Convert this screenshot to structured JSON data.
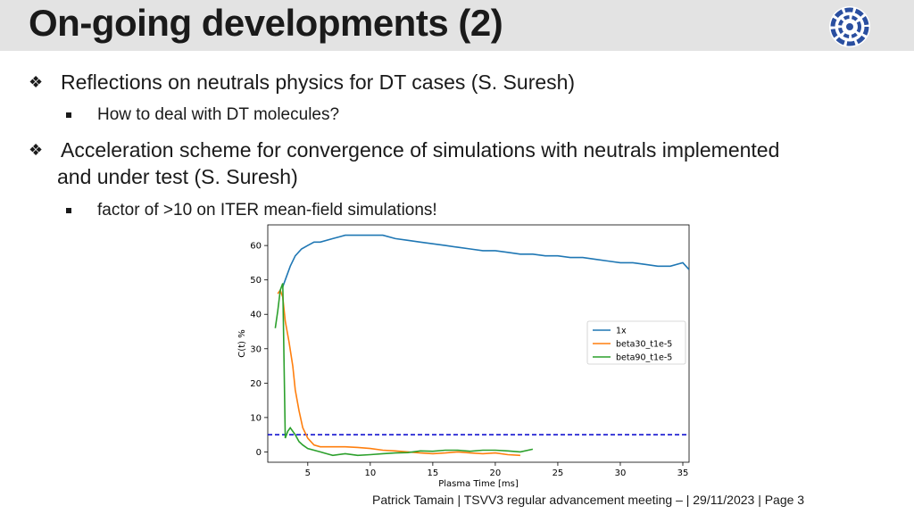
{
  "slide": {
    "title": "On-going developments (2)",
    "logo_icon": "eurofusion-ring-logo"
  },
  "bullets": [
    {
      "text": "Reflections on neutrals physics for DT cases (S. Suresh)",
      "sub": [
        "How to deal with DT molecules?"
      ]
    },
    {
      "text_line1": "Acceleration scheme for convergence of simulations with neutrals implemented",
      "text_line2": "and under test (S. Suresh)",
      "sub": [
        "factor of >10 on ITER mean-field simulations!"
      ]
    }
  ],
  "footer": {
    "text": "Patrick Tamain | TSVV3 regular advancement meeting –  | 29/11/2023 | Page 3"
  },
  "chart_data": {
    "type": "line",
    "xlabel": "Plasma Time [ms]",
    "ylabel": "C(t) %",
    "xlim": [
      1.8,
      35.5
    ],
    "ylim": [
      -3,
      66
    ],
    "xticks": [
      5,
      10,
      15,
      20,
      25,
      30,
      35
    ],
    "yticks": [
      0,
      10,
      20,
      30,
      40,
      50,
      60
    ],
    "grid": false,
    "legend_position": "right",
    "threshold_line": {
      "y": 5,
      "color": "#0000cc",
      "style": "dashed"
    },
    "series": [
      {
        "name": "1x",
        "color": "#1f77b4",
        "x": [
          3.0,
          3.3,
          3.6,
          4.0,
          4.5,
          5.0,
          5.5,
          6.0,
          7.0,
          8.0,
          9.0,
          10.0,
          11.0,
          12.0,
          13.0,
          14.0,
          15.0,
          16.0,
          17.0,
          18.0,
          19.0,
          20.0,
          21.0,
          22.0,
          23.0,
          24.0,
          25.0,
          26.0,
          27.0,
          28.0,
          29.0,
          30.0,
          31.0,
          32.0,
          33.0,
          34.0,
          35.0,
          35.5
        ],
        "y": [
          48,
          51,
          54,
          57,
          59,
          60,
          61,
          61,
          62,
          63,
          63,
          63,
          63,
          62,
          61.5,
          61,
          60.5,
          60,
          59.5,
          59,
          58.5,
          58.5,
          58,
          57.5,
          57.5,
          57,
          57,
          56.5,
          56.5,
          56,
          55.5,
          55,
          55,
          54.5,
          54,
          54,
          55,
          53
        ]
      },
      {
        "name": "beta30_t1e-5",
        "color": "#ff7f0e",
        "x": [
          2.6,
          2.8,
          3.0,
          3.2,
          3.5,
          3.8,
          4.0,
          4.3,
          4.6,
          5.0,
          5.5,
          6.0,
          7.0,
          8.0,
          9.0,
          10.0,
          11.0,
          12.0,
          13.0,
          14.0,
          15.0,
          16.0,
          17.0,
          18.0,
          19.0,
          20.0,
          21.0,
          22.0
        ],
        "y": [
          46,
          47,
          45,
          38,
          32,
          25,
          18,
          12,
          7,
          4,
          2,
          1.5,
          1.5,
          1.5,
          1.3,
          1.0,
          0.5,
          0.3,
          0.0,
          -0.3,
          -0.5,
          -0.3,
          0.0,
          -0.3,
          -0.5,
          -0.3,
          -0.8,
          -1.0
        ]
      },
      {
        "name": "beta90_t1e-5",
        "color": "#2ca02c",
        "x": [
          2.4,
          2.6,
          2.8,
          3.0,
          3.2,
          3.4,
          3.6,
          3.8,
          4.0,
          4.3,
          4.6,
          5.0,
          5.5,
          6.0,
          6.5,
          7.0,
          8.0,
          9.0,
          10.0,
          11.0,
          12.0,
          13.0,
          14.0,
          15.0,
          16.0,
          17.0,
          18.0,
          19.0,
          20.0,
          21.0,
          22.0,
          23.0
        ],
        "y": [
          36,
          41,
          47,
          49,
          4,
          6,
          7,
          6,
          5,
          3,
          2,
          1,
          0.5,
          0,
          -0.5,
          -1,
          -0.5,
          -1,
          -0.8,
          -0.5,
          -0.3,
          -0.2,
          0.3,
          0.2,
          0.5,
          0.5,
          0.2,
          0.5,
          0.5,
          0.3,
          0.0,
          0.8
        ]
      }
    ]
  }
}
